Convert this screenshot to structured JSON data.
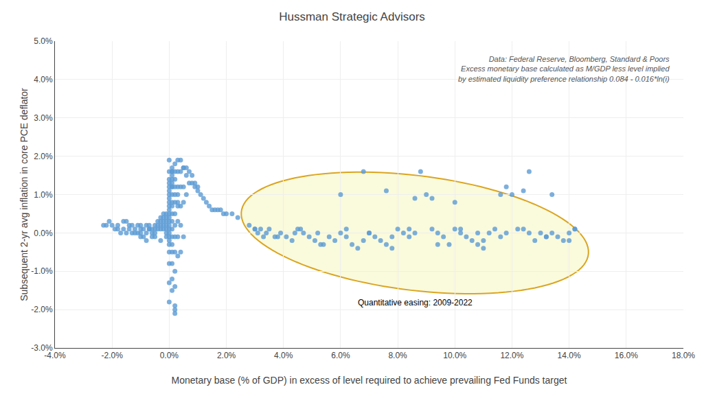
{
  "chart_data": {
    "type": "scatter",
    "title": "Hussman Strategic Advisors",
    "annotation": [
      "Data: Federal Reserve, Bloomberg, Standard & Poors",
      "Excess monetary base calculated as M/GDP less level implied",
      "by estimated liquidity preference relationship 0.084 - 0.016*ln(i)"
    ],
    "xlabel": "Monetary base (% of GDP) in excess of level required to achieve prevailing Fed Funds target",
    "ylabel": "Subsequent 2-yr avg inflation in core PCE deflator",
    "xlim": [
      -0.04,
      0.18
    ],
    "ylim": [
      -0.03,
      0.05
    ],
    "xticks": [
      {
        "value": -0.04,
        "label": "-4.0%"
      },
      {
        "value": -0.02,
        "label": "-2.0%"
      },
      {
        "value": 0.0,
        "label": "0.0%"
      },
      {
        "value": 0.02,
        "label": "2.0%"
      },
      {
        "value": 0.04,
        "label": "4.0%"
      },
      {
        "value": 0.06,
        "label": "6.0%"
      },
      {
        "value": 0.08,
        "label": "8.0%"
      },
      {
        "value": 0.1,
        "label": "10.0%"
      },
      {
        "value": 0.12,
        "label": "12.0%"
      },
      {
        "value": 0.14,
        "label": "14.0%"
      },
      {
        "value": 0.16,
        "label": "16.0%"
      },
      {
        "value": 0.18,
        "label": "18.0%"
      }
    ],
    "yticks": [
      {
        "value": -0.03,
        "label": "-3.0%"
      },
      {
        "value": -0.02,
        "label": "-2.0%"
      },
      {
        "value": -0.01,
        "label": "-1.0%"
      },
      {
        "value": 0.0,
        "label": "0.0%"
      },
      {
        "value": 0.01,
        "label": "1.0%"
      },
      {
        "value": 0.02,
        "label": "2.0%"
      },
      {
        "value": 0.03,
        "label": "3.0%"
      },
      {
        "value": 0.04,
        "label": "4.0%"
      },
      {
        "value": 0.05,
        "label": "5.0%"
      }
    ],
    "grid": true,
    "ellipse": {
      "label": "Quantitative easing: 2009-2022",
      "center_x": 0.086,
      "center_y": 0.0,
      "width": 0.122,
      "height": 0.03,
      "angle": -5,
      "color": "#DAA520",
      "fill": "#FAFADC"
    },
    "series": [
      {
        "color": "#5B9BD5",
        "x": [
          -0.023,
          -0.022,
          -0.021,
          -0.02,
          -0.019,
          -0.018,
          -0.018,
          -0.017,
          -0.016,
          -0.016,
          -0.015,
          -0.015,
          -0.014,
          -0.014,
          -0.013,
          -0.013,
          -0.012,
          -0.012,
          -0.011,
          -0.011,
          -0.01,
          -0.01,
          -0.01,
          -0.01,
          -0.009,
          -0.009,
          -0.008,
          -0.008,
          -0.008,
          -0.007,
          -0.007,
          -0.007,
          -0.006,
          -0.006,
          -0.006,
          -0.005,
          -0.005,
          -0.005,
          -0.005,
          -0.004,
          -0.004,
          -0.004,
          -0.003,
          -0.003,
          -0.003,
          -0.003,
          -0.003,
          -0.002,
          -0.002,
          -0.002,
          -0.002,
          -0.002,
          -0.001,
          -0.001,
          -0.001,
          -0.001,
          -0.001,
          -0.001,
          -0.001,
          0.0,
          0.0,
          0.0,
          0.0,
          0.0,
          0.0,
          0.0,
          0.0,
          0.0,
          0.0,
          0.0,
          0.0,
          0.0,
          0.0,
          0.0,
          0.0,
          0.0,
          0.0,
          0.0,
          0.0,
          0.0,
          0.0,
          0.0,
          0.0,
          0.001,
          0.001,
          0.001,
          0.001,
          0.001,
          0.001,
          0.001,
          0.001,
          0.001,
          0.001,
          0.001,
          0.001,
          0.001,
          0.001,
          0.001,
          0.001,
          0.001,
          0.001,
          0.001,
          0.001,
          0.002,
          0.002,
          0.002,
          0.002,
          0.002,
          0.002,
          0.002,
          0.002,
          0.002,
          0.002,
          0.002,
          0.002,
          0.002,
          0.002,
          0.002,
          0.003,
          0.003,
          0.003,
          0.003,
          0.003,
          0.003,
          0.003,
          0.003,
          0.003,
          0.004,
          0.004,
          0.004,
          0.004,
          0.004,
          0.004,
          0.005,
          0.005,
          0.005,
          0.005,
          0.005,
          0.006,
          0.006,
          0.006,
          0.007,
          0.007,
          0.008,
          0.008,
          0.009,
          0.009,
          0.01,
          0.01,
          0.011,
          0.012,
          0.013,
          0.014,
          0.015,
          0.016,
          0.017,
          0.018,
          0.019,
          0.02,
          0.022,
          0.024
        ],
        "values": [
          0.002,
          0.002,
          0.003,
          0.002,
          0.001,
          0.002,
          0.001,
          0.0,
          0.003,
          0.001,
          0.0,
          0.003,
          0.002,
          0.001,
          0.0,
          0.002,
          0.001,
          0.0,
          0.002,
          0.0,
          0.002,
          0.001,
          -0.001,
          0.0,
          -0.001,
          0.001,
          0.002,
          0.0,
          -0.002,
          0.001,
          0.002,
          0.001,
          0.0,
          0.001,
          -0.001,
          0.002,
          0.001,
          0.0,
          -0.001,
          0.003,
          0.002,
          0.001,
          0.004,
          0.003,
          0.002,
          0.001,
          -0.002,
          0.005,
          0.004,
          0.003,
          0.002,
          0.001,
          0.005,
          0.004,
          0.003,
          0.002,
          0.001,
          0.0,
          -0.001,
          0.019,
          0.016,
          0.014,
          0.013,
          0.012,
          0.011,
          0.01,
          0.009,
          0.008,
          0.007,
          0.006,
          0.005,
          0.004,
          0.003,
          0.002,
          0.001,
          0.0,
          -0.001,
          -0.002,
          -0.003,
          -0.005,
          -0.008,
          -0.013,
          -0.018,
          0.016,
          0.015,
          0.013,
          0.012,
          0.01,
          0.008,
          0.007,
          0.005,
          0.003,
          0.001,
          -0.001,
          -0.003,
          -0.005,
          -0.008,
          -0.012,
          -0.015,
          0.017,
          0.016,
          0.014,
          0.012,
          0.01,
          0.008,
          0.005,
          0.002,
          -0.001,
          -0.005,
          -0.01,
          -0.014,
          -0.019,
          -0.02,
          -0.021,
          0.018,
          0.016,
          0.014,
          0.012,
          0.01,
          0.007,
          0.003,
          -0.001,
          -0.006,
          0.019,
          0.016,
          0.012,
          0.008,
          0.002,
          -0.005,
          0.019,
          0.016,
          0.012,
          0.007,
          -0.001,
          0.017,
          0.012,
          0.008,
          0.017,
          0.01,
          0.017,
          0.015,
          0.016,
          0.013,
          0.015,
          0.013,
          0.012,
          0.013,
          0.012,
          0.011,
          0.01,
          0.009,
          0.008,
          0.007,
          0.006,
          0.006,
          0.006,
          0.006,
          0.005,
          0.005,
          0.005,
          0.004
        ]
      },
      {
        "color": "#5B9BD5",
        "x": [
          0.028,
          0.03,
          0.031,
          0.032,
          0.033,
          0.034,
          0.035,
          0.037,
          0.039,
          0.041,
          0.043,
          0.045,
          0.047,
          0.049,
          0.051,
          0.053,
          0.056,
          0.058,
          0.06,
          0.062,
          0.064,
          0.066,
          0.068,
          0.07,
          0.072,
          0.074,
          0.076,
          0.078,
          0.08,
          0.082,
          0.084,
          0.086,
          0.088,
          0.09,
          0.092,
          0.094,
          0.096,
          0.098,
          0.1,
          0.102,
          0.104,
          0.106,
          0.108,
          0.11,
          0.112,
          0.114,
          0.116,
          0.118,
          0.12,
          0.122,
          0.124,
          0.126,
          0.128,
          0.13,
          0.132,
          0.134,
          0.136,
          0.138,
          0.14,
          0.142,
          0.044,
          0.052,
          0.06,
          0.068,
          0.076,
          0.084,
          0.092,
          0.1,
          0.108,
          0.116,
          0.124,
          0.132,
          0.14,
          0.03,
          0.038,
          0.046,
          0.054,
          0.062,
          0.07,
          0.078,
          0.086,
          0.094,
          0.102,
          0.11,
          0.118,
          0.126,
          0.134,
          0.142
        ],
        "values": [
          0.002,
          0.001,
          0.0,
          0.001,
          -0.001,
          0.0,
          0.001,
          -0.001,
          0.0,
          -0.001,
          -0.002,
          0.001,
          0.0,
          -0.001,
          -0.002,
          -0.003,
          -0.001,
          -0.002,
          0.0,
          -0.001,
          -0.003,
          -0.004,
          -0.002,
          0.0,
          -0.001,
          -0.002,
          -0.003,
          -0.004,
          0.001,
          0.0,
          -0.001,
          0.009,
          0.016,
          0.01,
          0.001,
          0.0,
          -0.001,
          -0.003,
          0.008,
          0.0,
          -0.001,
          -0.002,
          -0.003,
          -0.004,
          0.0,
          0.001,
          -0.001,
          0.0,
          0.01,
          0.001,
          0.001,
          0.0,
          -0.002,
          0.0,
          -0.001,
          0.0,
          -0.001,
          -0.002,
          0.0,
          0.001,
          0.0,
          0.0,
          0.01,
          0.016,
          0.011,
          0.001,
          0.009,
          0.001,
          0.0,
          0.01,
          0.011,
          -0.001,
          -0.002,
          0.001,
          -0.001,
          0.001,
          -0.003,
          0.001,
          0.0,
          -0.001,
          0.0,
          -0.003,
          0.001,
          -0.002,
          0.012,
          0.016,
          0.01,
          0.001
        ]
      }
    ]
  }
}
